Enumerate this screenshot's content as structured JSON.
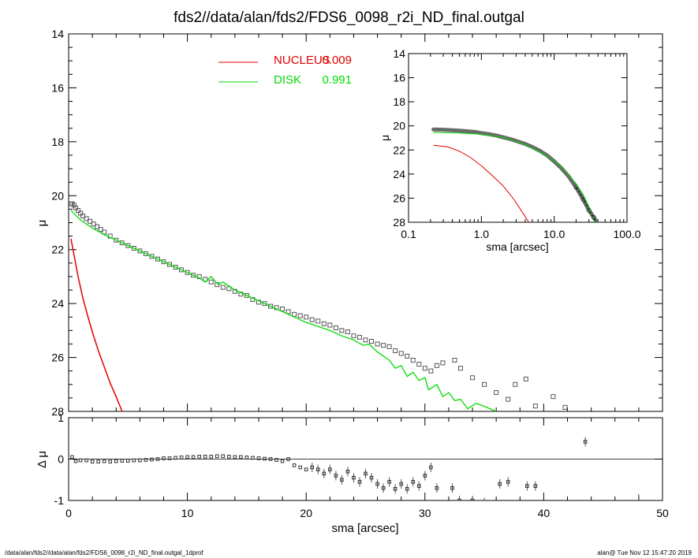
{
  "title": "fds2//data/alan/fds2/FDS6_0098_r2i_ND_final.outgal",
  "footer": {
    "left": "/data/alan/fds2//data/alan/fds2/FDS6_0098_r2i_ND_final.outgal_1dprof",
    "right": "alan@  Tue Nov 12 15:47:20 2019"
  },
  "colors": {
    "nucleus": "#e00000",
    "disk": "#00dd00",
    "data": "#555555"
  },
  "legend": [
    {
      "name": "NUCLEUS",
      "value": "0.009",
      "color": "#e00000"
    },
    {
      "name": "DISK",
      "value": "0.991",
      "color": "#00dd00"
    }
  ],
  "chart_data": [
    {
      "type": "scatter",
      "panel": "main",
      "xlim": [
        0,
        50
      ],
      "ylim": [
        28,
        14
      ],
      "xlabel": "sma [arcsec]",
      "ylabel": "μ",
      "y_ticks": [
        "14",
        "16",
        "18",
        "20",
        "22",
        "24",
        "26",
        "28"
      ],
      "x_ticks": [
        "0",
        "10",
        "20",
        "30",
        "40",
        "50"
      ],
      "observed": {
        "x": [
          0.2,
          0.3,
          0.45,
          0.6,
          0.8,
          1.0,
          1.2,
          1.5,
          1.8,
          2.1,
          2.4,
          2.7,
          3.0,
          3.5,
          4.0,
          4.5,
          5.0,
          5.5,
          6.0,
          6.5,
          7.0,
          7.5,
          8.0,
          8.5,
          9.0,
          9.5,
          10.0,
          10.5,
          11.0,
          11.5,
          12.0,
          12.5,
          13.0,
          13.5,
          14.0,
          14.5,
          15.0,
          15.5,
          16.0,
          16.5,
          17.0,
          17.5,
          18.0,
          18.5,
          19.0,
          19.5,
          20.0,
          20.5,
          21.0,
          21.5,
          22.0,
          22.5,
          23.0,
          23.5,
          24.0,
          24.5,
          25.0,
          25.5,
          26.0,
          26.5,
          27.0,
          27.5,
          28.0,
          28.5,
          29.0,
          29.5,
          30.0,
          30.5,
          31.0,
          31.5,
          32.5,
          33.0,
          34.0,
          35.0,
          36.0,
          37.0,
          37.6,
          38.5,
          39.3,
          40.8,
          41.8
        ],
        "y": [
          20.3,
          20.3,
          20.35,
          20.45,
          20.55,
          20.65,
          20.75,
          20.85,
          20.95,
          21.05,
          21.15,
          21.25,
          21.35,
          21.5,
          21.65,
          21.75,
          21.85,
          21.95,
          22.05,
          22.15,
          22.25,
          22.35,
          22.45,
          22.55,
          22.65,
          22.75,
          22.85,
          22.95,
          23.0,
          23.1,
          23.2,
          23.3,
          23.4,
          23.45,
          23.55,
          23.65,
          23.7,
          23.85,
          23.95,
          24.0,
          24.1,
          24.15,
          24.2,
          24.3,
          24.4,
          24.45,
          24.5,
          24.6,
          24.65,
          24.75,
          24.8,
          24.9,
          25.0,
          25.05,
          25.2,
          25.25,
          25.35,
          25.4,
          25.5,
          25.55,
          25.6,
          25.75,
          25.85,
          25.95,
          26.1,
          26.25,
          26.4,
          26.5,
          26.3,
          26.2,
          26.1,
          26.4,
          26.75,
          27.0,
          27.3,
          27.55,
          27.0,
          26.8,
          27.8,
          27.45,
          27.85
        ]
      },
      "disk": {
        "x": [
          0.2,
          1,
          2,
          3,
          4,
          5,
          6,
          7,
          8,
          9,
          10,
          11,
          11.5,
          12,
          12.6,
          13,
          14,
          15,
          16,
          17,
          18,
          19,
          20,
          21,
          22,
          23,
          24,
          24.8,
          25.3,
          26,
          27,
          27.5,
          28,
          28.5,
          29,
          29.5,
          30,
          30.3,
          31,
          31.5,
          32,
          32.5,
          33,
          33.6,
          34.3,
          35.2,
          36.0
        ],
        "y": [
          20.55,
          20.9,
          21.2,
          21.45,
          21.65,
          21.85,
          22.05,
          22.25,
          22.45,
          22.65,
          22.85,
          23.05,
          23.2,
          23.0,
          23.3,
          23.2,
          23.5,
          23.7,
          23.9,
          24.1,
          24.3,
          24.5,
          24.7,
          24.85,
          25.0,
          25.2,
          25.35,
          25.55,
          25.5,
          25.8,
          26.1,
          26.4,
          26.3,
          26.7,
          26.55,
          26.85,
          26.75,
          27.2,
          27.0,
          27.45,
          27.3,
          27.6,
          27.55,
          27.9,
          27.7,
          27.85,
          28.0
        ]
      },
      "nucleus": {
        "x": [
          0.2,
          0.5,
          0.8,
          1.2,
          1.6,
          2.0,
          2.5,
          3.0,
          3.5,
          4.0,
          4.5
        ],
        "y": [
          21.6,
          22.3,
          23.0,
          23.8,
          24.45,
          25.05,
          25.75,
          26.35,
          26.95,
          27.45,
          28.0
        ]
      }
    },
    {
      "type": "scatter",
      "panel": "residual",
      "xlim": [
        0,
        50
      ],
      "ylim": [
        -1,
        1
      ],
      "ylabel": "Δ μ",
      "y_ticks": [
        "1",
        "0",
        "-1"
      ],
      "zero_line": true,
      "residual": {
        "x": [
          0.3,
          0.6,
          1.0,
          1.5,
          2.0,
          2.5,
          3.0,
          3.5,
          4.0,
          4.5,
          5.0,
          5.5,
          6.0,
          6.5,
          7.0,
          7.5,
          8.0,
          8.5,
          9.0,
          9.5,
          10.0,
          10.5,
          11.0,
          11.5,
          12.0,
          12.5,
          13.0,
          13.5,
          14.0,
          14.5,
          15.0,
          15.5,
          16.0,
          16.5,
          17.0,
          17.5,
          18.0,
          18.5,
          19.0,
          19.5,
          20.0,
          20.5,
          21.0,
          21.5,
          22.0,
          22.5,
          23.0,
          23.5,
          24.0,
          24.5,
          25.0,
          25.5,
          26.0,
          26.5,
          27.0,
          27.5,
          28.0,
          28.5,
          29.0,
          29.5,
          30.0,
          30.5,
          31.0,
          32.3,
          32.9,
          34.0,
          35.0,
          36.3,
          37.0,
          38.6,
          39.3,
          43.5
        ],
        "y": [
          0.05,
          -0.05,
          -0.03,
          -0.03,
          -0.06,
          -0.06,
          -0.05,
          -0.06,
          -0.05,
          -0.04,
          -0.04,
          -0.03,
          -0.03,
          -0.02,
          -0.01,
          0.0,
          0.02,
          0.02,
          0.03,
          0.04,
          0.05,
          0.05,
          0.06,
          0.06,
          0.06,
          0.07,
          0.07,
          0.06,
          0.05,
          0.05,
          0.04,
          0.03,
          0.02,
          0.01,
          0.0,
          -0.02,
          -0.05,
          0.0,
          -0.15,
          -0.2,
          -0.25,
          -0.2,
          -0.25,
          -0.35,
          -0.25,
          -0.4,
          -0.5,
          -0.3,
          -0.45,
          -0.55,
          -0.35,
          -0.45,
          -0.6,
          -0.7,
          -0.55,
          -0.72,
          -0.6,
          -0.72,
          -0.55,
          -0.65,
          -0.4,
          -0.2,
          -0.7,
          -0.7,
          -1.0,
          -1.0,
          -1.05,
          -0.6,
          -0.55,
          -0.65,
          -0.65,
          0.42
        ]
      }
    },
    {
      "type": "line",
      "panel": "inset",
      "x_scale": "log",
      "xlim": [
        0.1,
        100.0
      ],
      "ylim": [
        28,
        14
      ],
      "xlabel": "sma [arcsec]",
      "ylabel": "μ",
      "x_ticks": [
        "0.1",
        "1.0",
        "10.0",
        "100.0"
      ],
      "y_ticks": [
        "14",
        "16",
        "18",
        "20",
        "22",
        "24",
        "26",
        "28"
      ],
      "observed": {
        "x": [
          0.22,
          0.3,
          0.4,
          0.5,
          0.65,
          0.8,
          1.0,
          1.3,
          1.6,
          2.0,
          2.5,
          3.2,
          4.0,
          5.0,
          6.3,
          8.0,
          10,
          12.5,
          15.8,
          20,
          25,
          30,
          35,
          40,
          45
        ],
        "y": [
          20.3,
          20.32,
          20.36,
          20.4,
          20.45,
          20.5,
          20.6,
          20.7,
          20.8,
          20.95,
          21.1,
          21.3,
          21.5,
          21.75,
          22.05,
          22.45,
          22.95,
          23.5,
          24.2,
          25.1,
          26.1,
          27.0,
          27.6,
          28.2,
          28.6
        ]
      },
      "disk": {
        "x": [
          0.22,
          0.5,
          1.0,
          2.0,
          4.0,
          8.0,
          12,
          16,
          20,
          25,
          30,
          36
        ],
        "y": [
          20.55,
          20.6,
          20.7,
          20.95,
          21.55,
          22.5,
          23.3,
          24.1,
          24.8,
          25.7,
          26.7,
          28.0
        ]
      },
      "nucleus": {
        "x": [
          0.22,
          0.35,
          0.5,
          0.7,
          1.0,
          1.4,
          2.0,
          2.8,
          3.5,
          4.5
        ],
        "y": [
          21.6,
          21.75,
          22.1,
          22.6,
          23.3,
          24.1,
          25.0,
          26.1,
          27.0,
          28.0
        ]
      },
      "model": {
        "x": [
          20,
          25,
          30,
          35,
          40
        ],
        "y": [
          25.1,
          26.0,
          26.9,
          27.7,
          28.4
        ]
      }
    }
  ]
}
